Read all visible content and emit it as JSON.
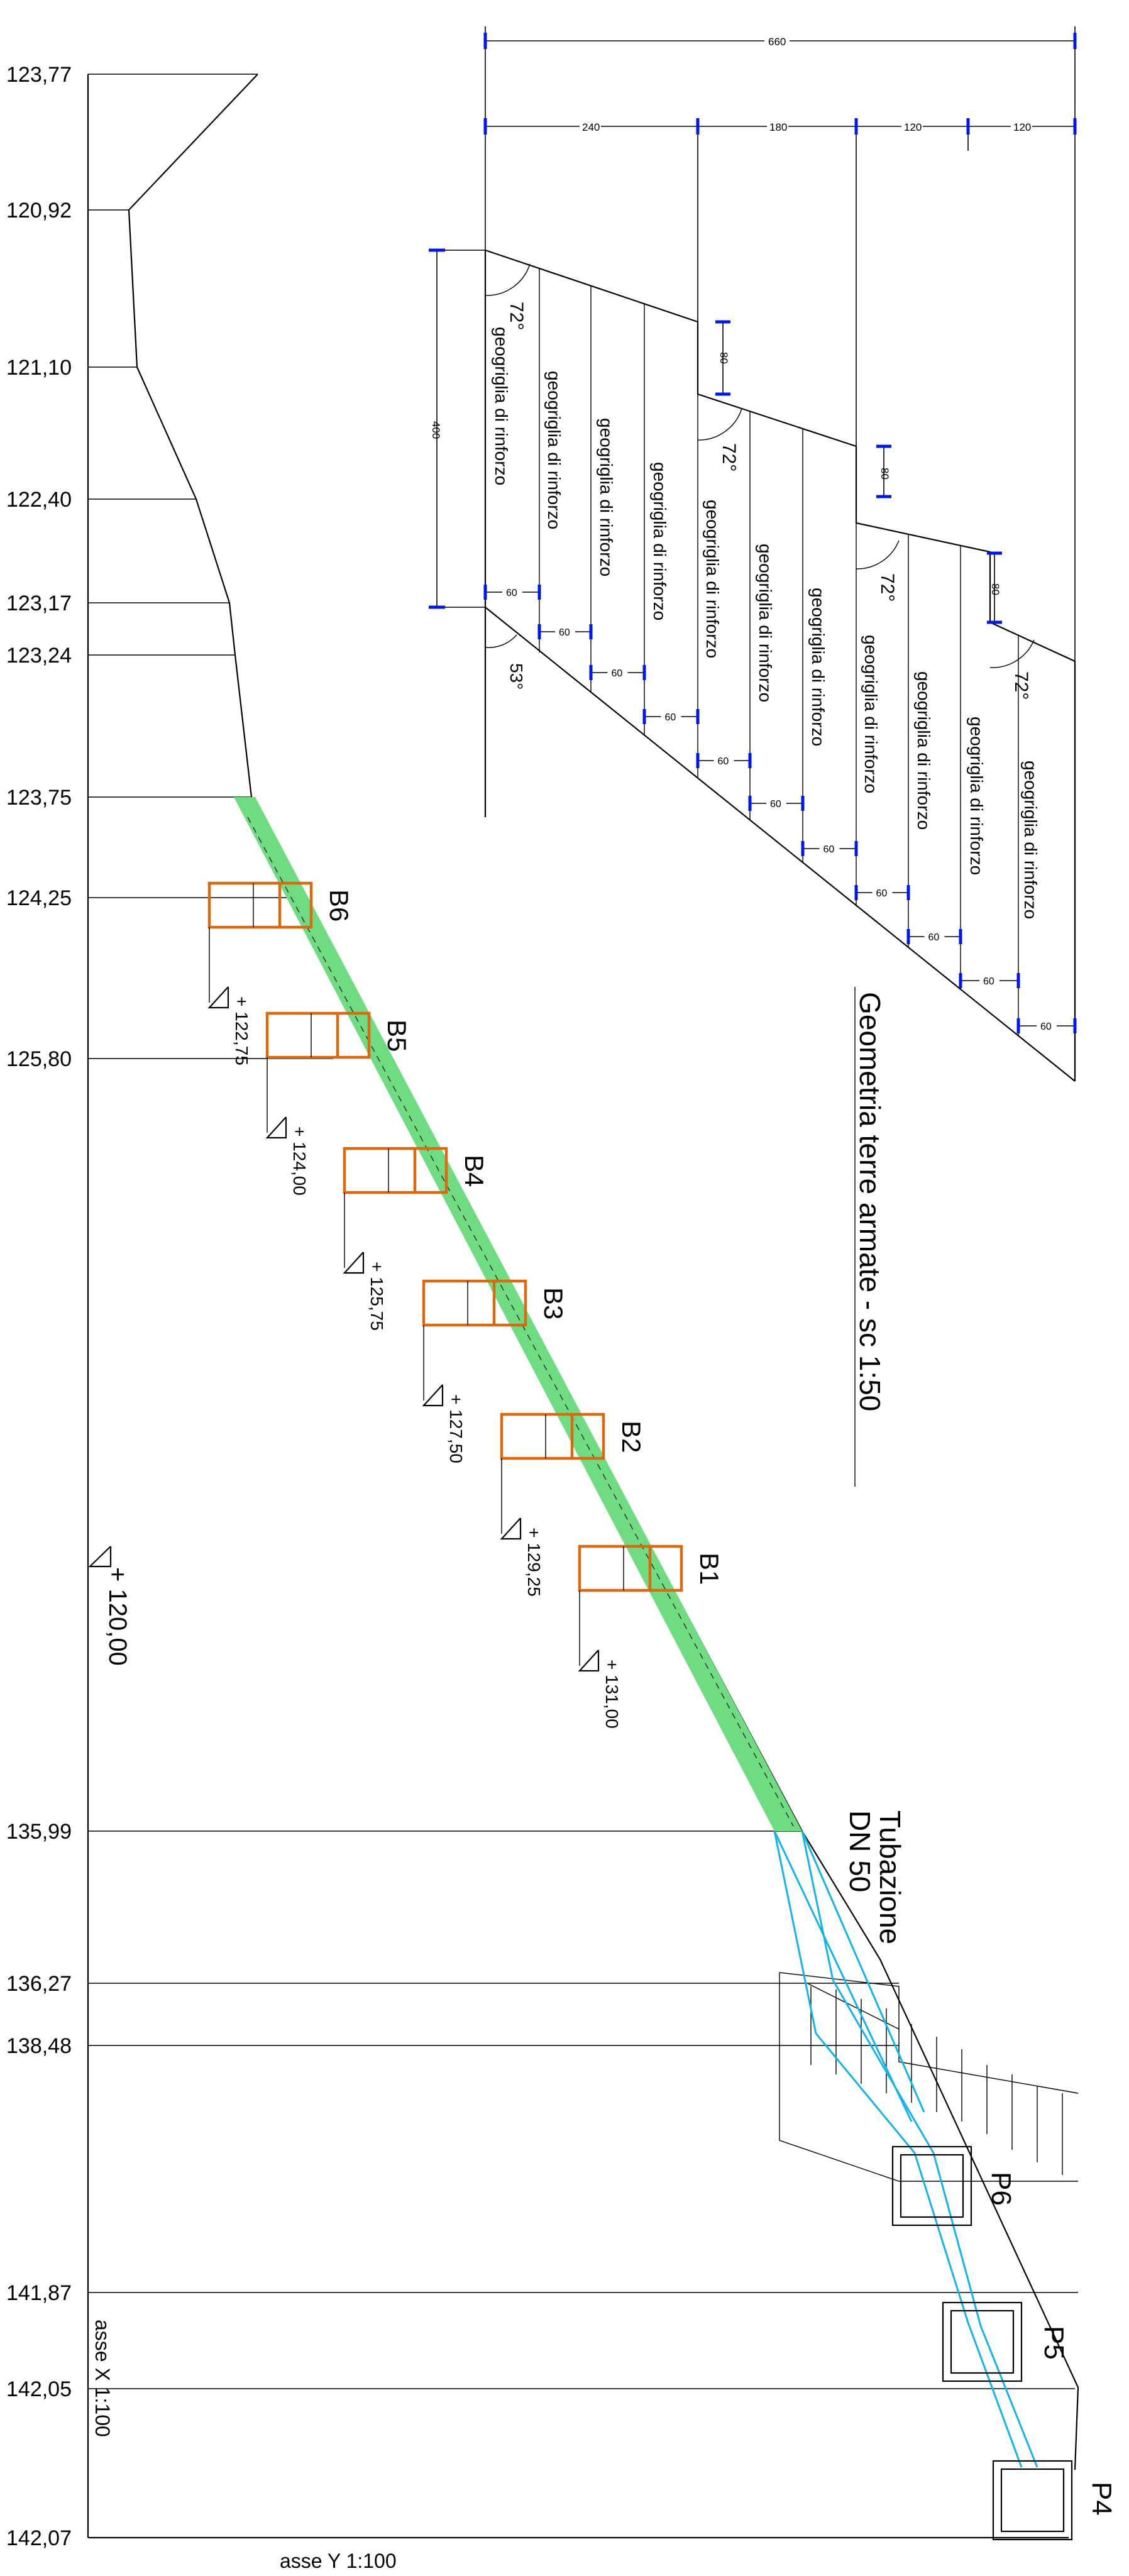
{
  "elevations_left": [
    "123,77",
    "120,92",
    "121,10",
    "122,40",
    "123,17",
    "123,24",
    "123,75",
    "124,25",
    "125,80",
    "135,99",
    "136,27",
    "138,48",
    "141,87",
    "142,05",
    "142,07"
  ],
  "blocks": [
    {
      "label": "B6",
      "quota": "+ 122,75"
    },
    {
      "label": "B5",
      "quota": "+ 124,00"
    },
    {
      "label": "B4",
      "quota": "+ 125,75"
    },
    {
      "label": "B3",
      "quota": "+ 127,50"
    },
    {
      "label": "B2",
      "quota": "+ 129,25"
    },
    {
      "label": "B1",
      "quota": "+ 131,00"
    }
  ],
  "base_quota": "+ 120,00",
  "wells": [
    "P6",
    "P5",
    "P4"
  ],
  "pipe_label": [
    "Tubazione",
    "DN 50"
  ],
  "title": "Geometria terre armate  -  sc 1:50",
  "axis_x_label": "asse X 1:100",
  "axis_y_label": "asse Y 1:100",
  "inset": {
    "dim_total": "660",
    "dim_parts": [
      "240",
      "180",
      "120",
      "120"
    ],
    "dim_height": "400",
    "dim_step": "80",
    "spacing": "60",
    "angle_face": "72°",
    "angle_base": "53°",
    "geogrid_label": "geogriglia di rinforzo"
  },
  "colors": {
    "fill": "#6fdc82",
    "blocks": "#d96a12",
    "pipe": "#17b3e6",
    "dim_ticks": "#0018e0"
  }
}
